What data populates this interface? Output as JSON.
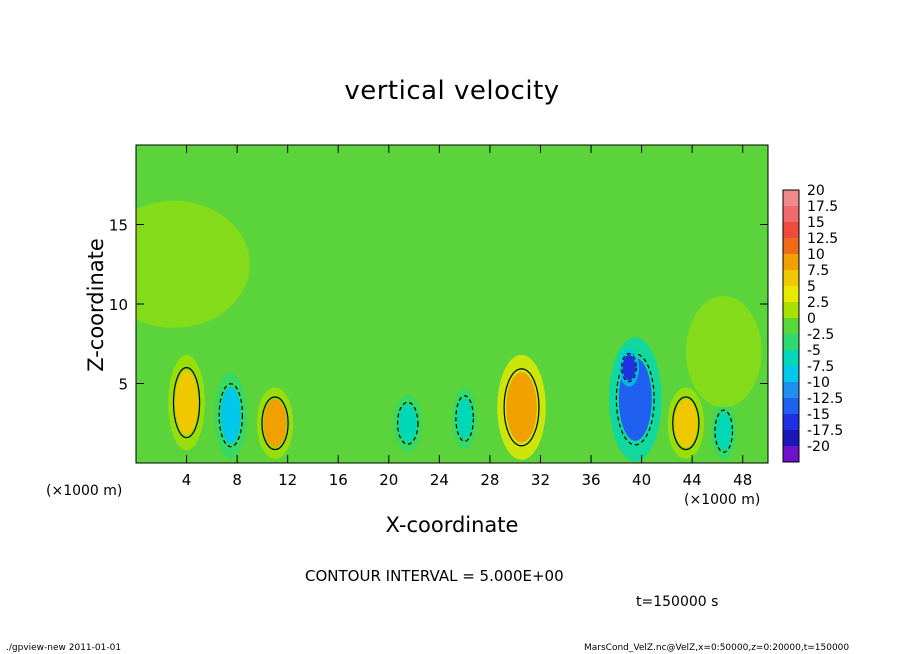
{
  "chart_data": {
    "type": "heatmap",
    "title": "vertical velocity",
    "xlabel": "X-coordinate",
    "ylabel": "Z-coordinate",
    "x_unit": "(×1000 m)",
    "y_unit": "(×1000 m)",
    "xlim": [
      0,
      50
    ],
    "ylim": [
      0,
      20
    ],
    "x_ticks": [
      4,
      8,
      12,
      16,
      20,
      24,
      28,
      32,
      36,
      40,
      44,
      48
    ],
    "y_ticks": [
      5,
      10,
      15
    ],
    "contour_interval_label": "CONTOUR INTERVAL = 5.000E+00",
    "time_label": "t=150000 s",
    "colorbar": {
      "labels": [
        "20",
        "17.5",
        "15",
        "12.5",
        "10",
        "7.5",
        "5",
        "2.5",
        "0",
        "-2.5",
        "-5",
        "-7.5",
        "-10",
        "-12.5",
        "-15",
        "-17.5",
        "-20"
      ],
      "colors": [
        "#f08a8a",
        "#f06a6a",
        "#f04a3c",
        "#f06a18",
        "#f0a000",
        "#f0c800",
        "#e8e800",
        "#a8e000",
        "#58d838",
        "#30d870",
        "#00d8b8",
        "#00c8e8",
        "#2090f0",
        "#2060f0",
        "#2030e0",
        "#1818b8",
        "#7010c8"
      ]
    },
    "features": [
      {
        "x": 4.0,
        "z": 3.8,
        "sx": 0.9,
        "sz": 2.0,
        "value": 8
      },
      {
        "x": 11.0,
        "z": 2.5,
        "sx": 0.9,
        "sz": 1.5,
        "value": 9
      },
      {
        "x": 7.5,
        "z": 3.0,
        "sx": 0.8,
        "sz": 1.8,
        "value": -7
      },
      {
        "x": 30.5,
        "z": 3.5,
        "sx": 1.2,
        "sz": 2.2,
        "value": 11
      },
      {
        "x": 39.5,
        "z": 4.0,
        "sx": 1.3,
        "sz": 2.6,
        "value": -12
      },
      {
        "x": 39.0,
        "z": 6.0,
        "sx": 0.5,
        "sz": 0.8,
        "value": -16
      },
      {
        "x": 43.5,
        "z": 2.5,
        "sx": 0.9,
        "sz": 1.5,
        "value": 8
      },
      {
        "x": 26.0,
        "z": 2.8,
        "sx": 0.6,
        "sz": 1.3,
        "value": -5
      },
      {
        "x": 21.5,
        "z": 2.5,
        "sx": 0.7,
        "sz": 1.2,
        "value": -4
      },
      {
        "x": 46.5,
        "z": 2.0,
        "sx": 0.6,
        "sz": 1.2,
        "value": -4
      },
      {
        "x": 3.0,
        "z": 12.5,
        "sx": 6.0,
        "sz": 4.0,
        "value": 3
      },
      {
        "x": 46.5,
        "z": 7.0,
        "sx": 3.0,
        "sz": 3.5,
        "value": 3
      }
    ],
    "footer_left": "./gpview-new   2011-01-01",
    "footer_right": "MarsCond_VelZ.nc@VelZ,x=0:50000,z=0:20000,t=150000"
  }
}
